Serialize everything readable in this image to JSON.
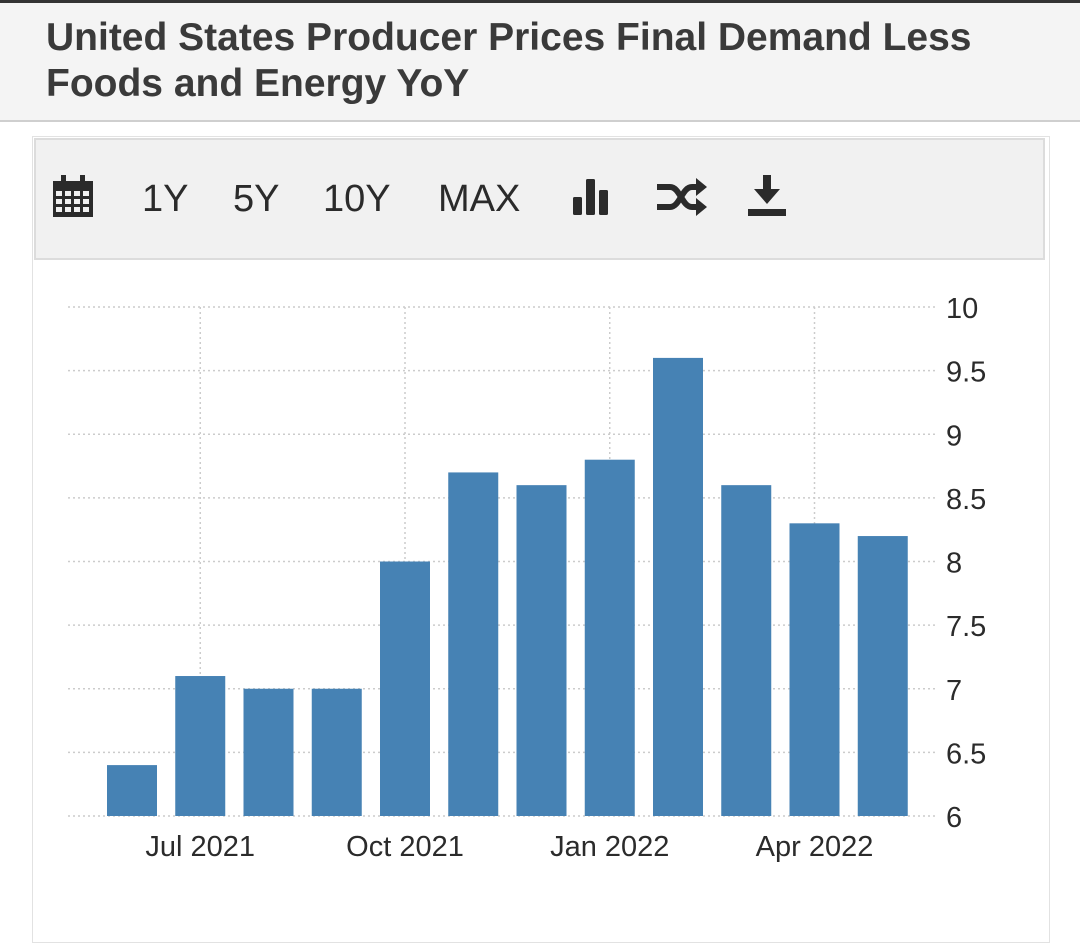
{
  "header": {
    "title": "United States Producer Prices Final Demand Less Foods and Energy YoY"
  },
  "toolbar": {
    "icons": [
      "calendar-icon",
      "bar-chart-icon",
      "shuffle-icon",
      "download-icon"
    ],
    "ranges": [
      "1Y",
      "5Y",
      "10Y",
      "MAX"
    ]
  },
  "colors": {
    "bar": "#4682b4",
    "header_bg": "#f4f4f4",
    "toolbar_bg": "#f1f1f1",
    "grid": "#cccccc"
  },
  "chart_data": {
    "type": "bar",
    "title": "",
    "xlabel": "",
    "ylabel": "",
    "categories": [
      "Jun 2021",
      "Jul 2021",
      "Aug 2021",
      "Sep 2021",
      "Oct 2021",
      "Nov 2021",
      "Dec 2021",
      "Jan 2022",
      "Feb 2022",
      "Mar 2022",
      "Apr 2022",
      "May 2022"
    ],
    "values": [
      6.4,
      7.1,
      7.0,
      7.0,
      8.0,
      8.7,
      8.6,
      8.8,
      9.6,
      8.6,
      8.3,
      8.2
    ],
    "x_tick_labels": [
      "Jul 2021",
      "Oct 2021",
      "Jan 2022",
      "Apr 2022"
    ],
    "y_ticks": [
      "6",
      "6.5",
      "7",
      "7.5",
      "8",
      "8.5",
      "9",
      "9.5",
      "10"
    ],
    "ylim": [
      6,
      10
    ],
    "grid": true,
    "y_axis_position": "right",
    "legend": "none"
  }
}
